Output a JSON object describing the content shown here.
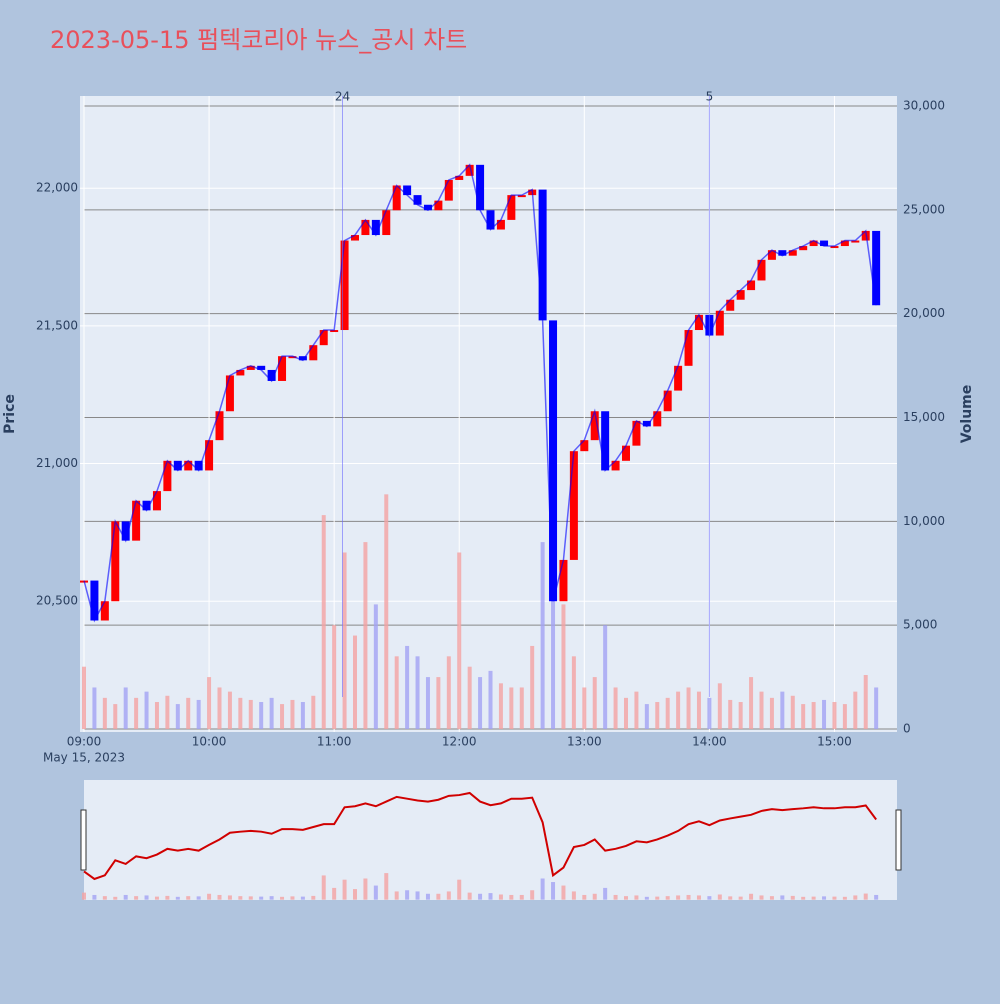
{
  "chart_data": {
    "type": "price-volume",
    "title": "2023-05-15 펌텍코리아 뉴스_공시 차트",
    "date_label": "May 15, 2023",
    "ylabel": "Price",
    "y2label": "Volume",
    "x": [
      "09:00",
      "09:05",
      "09:10",
      "09:15",
      "09:20",
      "09:25",
      "09:30",
      "09:35",
      "09:40",
      "09:45",
      "09:50",
      "09:55",
      "10:00",
      "10:05",
      "10:10",
      "10:15",
      "10:20",
      "10:25",
      "10:30",
      "10:35",
      "10:40",
      "10:45",
      "10:50",
      "10:55",
      "11:00",
      "11:05",
      "11:10",
      "11:15",
      "11:20",
      "11:25",
      "11:30",
      "11:35",
      "11:40",
      "11:45",
      "11:50",
      "11:55",
      "12:00",
      "12:05",
      "12:10",
      "12:15",
      "12:20",
      "12:25",
      "12:30",
      "12:35",
      "12:40",
      "12:45",
      "12:50",
      "12:55",
      "13:00",
      "13:05",
      "13:10",
      "13:15",
      "13:20",
      "13:25",
      "13:30",
      "13:35",
      "13:40",
      "13:45",
      "13:50",
      "13:55",
      "14:00",
      "14:05",
      "14:10",
      "14:15",
      "14:20",
      "14:25",
      "14:30",
      "14:35",
      "14:40",
      "14:45",
      "14:50",
      "14:55",
      "15:00",
      "15:05",
      "15:10",
      "15:15",
      "15:20"
    ],
    "series": [
      {
        "name": "Price",
        "up_color": "#ff0000",
        "down_color": "#0000ff",
        "values": [
          20575,
          20430,
          20500,
          20790,
          20720,
          20865,
          20830,
          20900,
          21010,
          20975,
          21010,
          20975,
          21085,
          21190,
          21320,
          21340,
          21355,
          21340,
          21300,
          21390,
          21390,
          21375,
          21430,
          21485,
          21485,
          21810,
          21830,
          21885,
          21830,
          21920,
          22010,
          21975,
          21940,
          21920,
          21955,
          22030,
          22045,
          22085,
          21920,
          21850,
          21885,
          21975,
          21975,
          21995,
          21520,
          20500,
          20650,
          21045,
          21085,
          21190,
          20975,
          21010,
          21065,
          21155,
          21135,
          21190,
          21265,
          21355,
          21485,
          21540,
          21465,
          21555,
          21595,
          21630,
          21665,
          21740,
          21775,
          21755,
          21775,
          21790,
          21810,
          21790,
          21790,
          21810,
          21810,
          21845,
          21575
        ]
      },
      {
        "name": "Volume",
        "axis": "y2",
        "up_color": "#f4a3a3",
        "down_color": "#a3a3f4",
        "values": [
          3000,
          2000,
          1500,
          1200,
          2000,
          1500,
          1800,
          1300,
          1600,
          1200,
          1500,
          1400,
          2500,
          2000,
          1800,
          1500,
          1400,
          1300,
          1500,
          1200,
          1400,
          1300,
          1600,
          10300,
          5000,
          8500,
          4500,
          9000,
          6000,
          11300,
          3500,
          4000,
          3500,
          2500,
          2500,
          3500,
          8500,
          3000,
          2500,
          2800,
          2200,
          2000,
          2000,
          4000,
          9000,
          7500,
          6000,
          3500,
          2000,
          2500,
          5000,
          2000,
          1500,
          1800,
          1200,
          1300,
          1500,
          1800,
          2000,
          1800,
          1500,
          2200,
          1400,
          1300,
          2500,
          1800,
          1500,
          1800,
          1600,
          1200,
          1300,
          1400,
          1300,
          1200,
          1800,
          2600,
          2000
        ]
      }
    ],
    "xlim": [
      "09:00",
      "15:30"
    ],
    "xticks": [
      "09:00",
      "10:00",
      "11:00",
      "12:00",
      "13:00",
      "14:00",
      "15:00"
    ],
    "ylim": [
      20025,
      22335
    ],
    "yticks": [
      {
        "value": 20500,
        "label": "20,500"
      },
      {
        "value": 21000,
        "label": "21,000"
      },
      {
        "value": 21500,
        "label": "21,500"
      },
      {
        "value": 22000,
        "label": "22,000"
      }
    ],
    "y2lim": [
      -144,
      30481
    ],
    "y2ticks": [
      0,
      {
        "value": 5000,
        "label": "5,000"
      },
      {
        "value": 10000,
        "label": "10,000"
      },
      {
        "value": 15000,
        "label": "15,000"
      },
      {
        "value": 20000,
        "label": "20,000"
      },
      {
        "value": 25000,
        "label": "25,000"
      },
      {
        "value": 30000,
        "label": "30,000"
      }
    ],
    "annotations": [
      {
        "text": "24",
        "x": "11:04"
      },
      {
        "text": "5",
        "x": "14:00"
      }
    ],
    "grid": true
  }
}
